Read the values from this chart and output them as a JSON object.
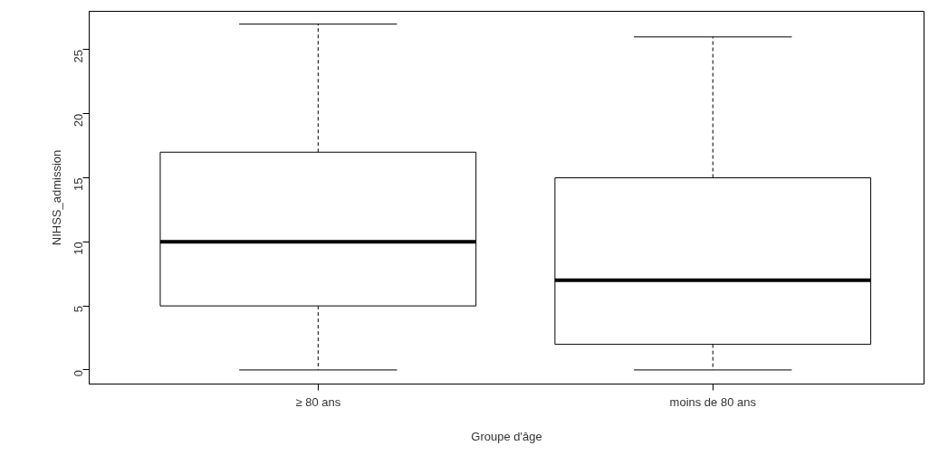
{
  "chart_data": {
    "type": "box",
    "xlabel": "Groupe d'âge",
    "ylabel": "NIHSS_admission",
    "categories": [
      "≥ 80 ans",
      "moins de 80 ans"
    ],
    "boxes": [
      {
        "low": 0,
        "q1": 5,
        "median": 10,
        "q3": 17,
        "high": 27
      },
      {
        "low": 0,
        "q1": 2,
        "median": 7,
        "q3": 15,
        "high": 26
      }
    ],
    "color": "#ffffff",
    "ylim": [
      -1.1,
      28.0
    ],
    "yticks": [
      0,
      5,
      10,
      15,
      20,
      25
    ],
    "grid": false
  }
}
